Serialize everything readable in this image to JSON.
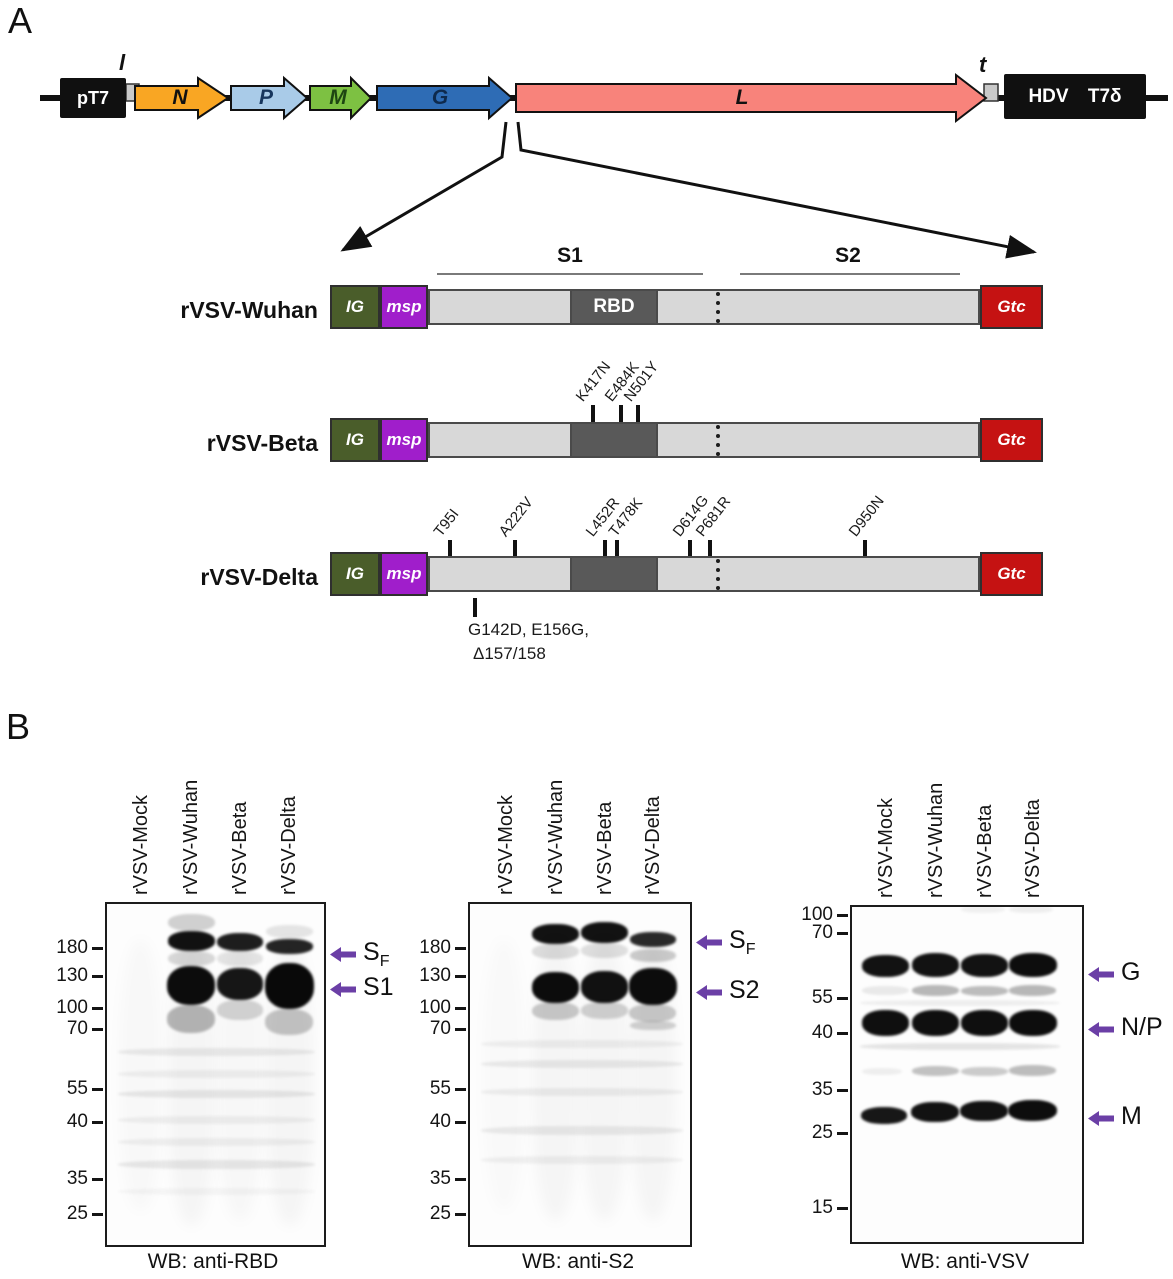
{
  "colors": {
    "accent_purple": "#6B3FA6",
    "gene_n_orange": "#F9A623",
    "gene_p_blue": "#A9CBE8",
    "gene_m_green": "#7DC142",
    "gene_g_blue": "#2E6CB5",
    "gene_l_salmon": "#F8837B",
    "ig_green": "#4A5D2A",
    "msp_purple": "#A01ECB",
    "gtc_red": "#C51212",
    "rbd_gray": "#595959",
    "spike_bar_gray": "#D8D8D8"
  },
  "panel_a": {
    "label": "A",
    "genome": {
      "pt7": "pT7",
      "leader": "l",
      "n": "N",
      "p": "P",
      "m": "M",
      "g": "G",
      "l_gene": "L",
      "trailer": "t",
      "hdv": "HDV T7δ"
    },
    "regions": {
      "s1": "S1",
      "s2": "S2"
    },
    "constructs": [
      {
        "name": "rVSV-Wuhan",
        "ig": "IG",
        "msp": "msp",
        "rbd": "RBD",
        "gtc": "Gtc",
        "mutations_above": [],
        "mutations_below_line1": "",
        "mutations_below_line2": ""
      },
      {
        "name": "rVSV-Beta",
        "ig": "IG",
        "msp": "msp",
        "gtc": "Gtc",
        "mutations_above": [
          "K417N",
          "E484K",
          "N501Y"
        ],
        "mutations_below_line1": "",
        "mutations_below_line2": ""
      },
      {
        "name": "rVSV-Delta",
        "ig": "IG",
        "msp": "msp",
        "gtc": "Gtc",
        "mutations_above": [
          "T95I",
          "A222V",
          "L452R",
          "T478K",
          "D614G",
          "P681R",
          "D950N"
        ],
        "mutations_below_line1": "G142D, E156G,",
        "mutations_below_line2": "Δ157/158"
      }
    ]
  },
  "panel_b": {
    "label": "B",
    "lanes": [
      "rVSV-Mock",
      "rVSV-Wuhan",
      "rVSV-Beta",
      "rVSV-Delta"
    ],
    "blots": [
      {
        "caption": "WB: anti-RBD",
        "markers": [
          "180",
          "130",
          "100",
          "70",
          "55",
          "40",
          "35",
          "25"
        ],
        "targets": [
          {
            "main": "S",
            "sub": "F"
          },
          {
            "main": "S1",
            "sub": ""
          }
        ]
      },
      {
        "caption": "WB: anti-S2",
        "markers": [
          "180",
          "130",
          "100",
          "70",
          "55",
          "40",
          "35",
          "25"
        ],
        "targets": [
          {
            "main": "S",
            "sub": "F"
          },
          {
            "main": "S2",
            "sub": ""
          }
        ]
      },
      {
        "caption": "WB: anti-VSV",
        "markers": [
          "100",
          "70",
          "55",
          "40",
          "35",
          "25",
          "15"
        ],
        "targets": [
          {
            "main": "G",
            "sub": ""
          },
          {
            "main": "N/P",
            "sub": ""
          },
          {
            "main": "M",
            "sub": ""
          }
        ]
      }
    ]
  }
}
